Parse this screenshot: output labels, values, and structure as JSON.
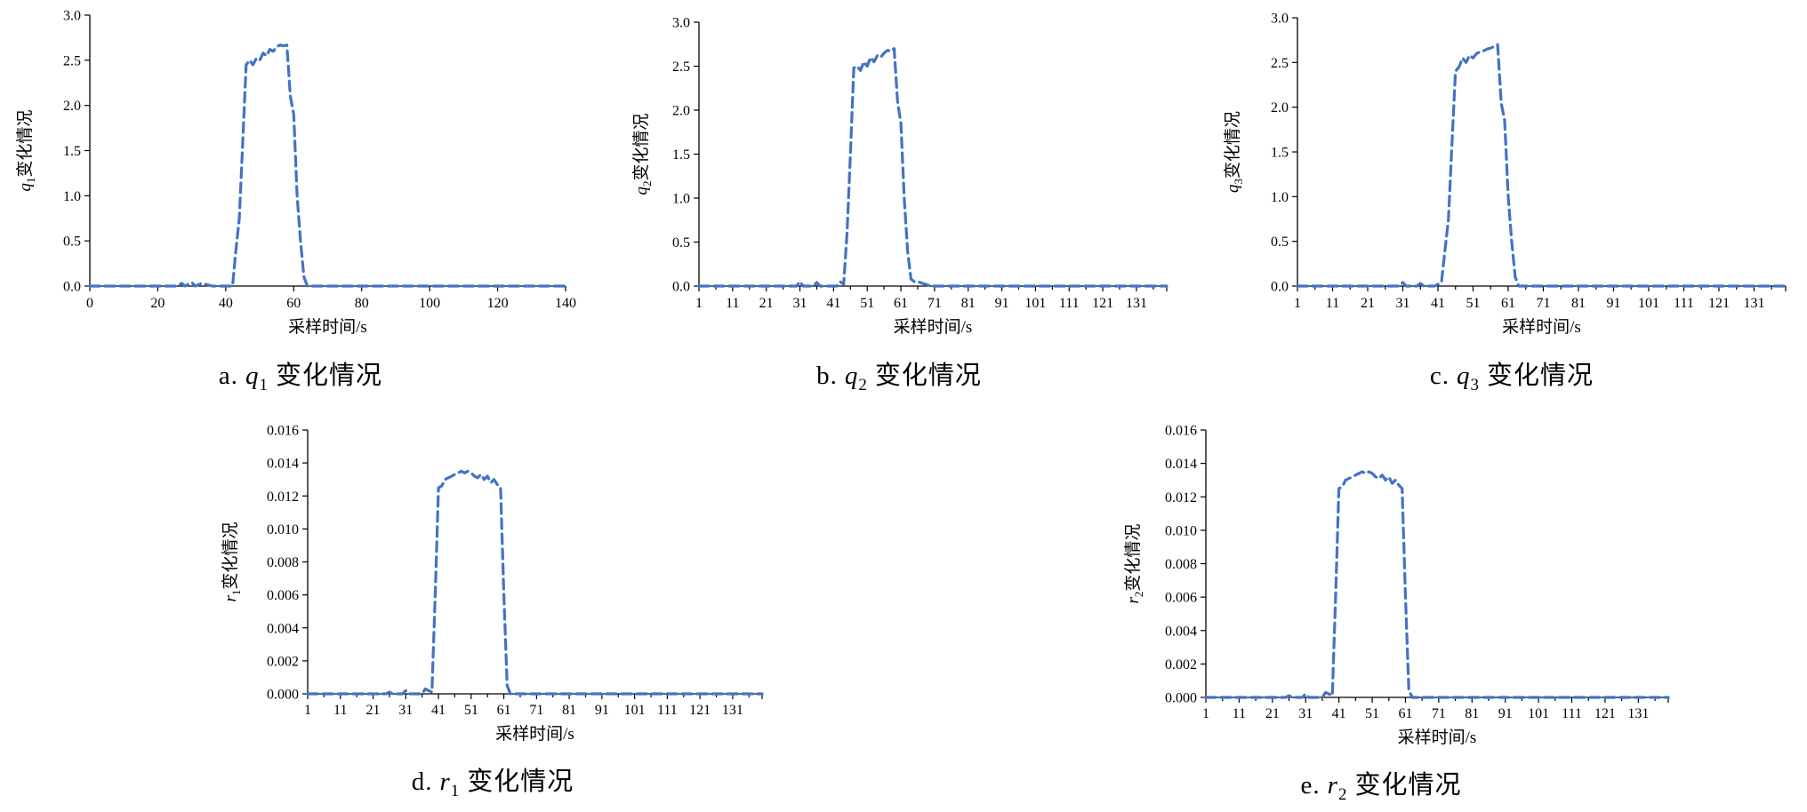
{
  "colors": {
    "series": "#4472C4",
    "axis": "#000000"
  },
  "chart_data": [
    {
      "type": "line",
      "caption": {
        "prefix": "a.",
        "var": "q",
        "sub": "1",
        "suffix": "变化情况"
      },
      "ylabel": {
        "var": "q",
        "sub": "1",
        "text": "变化情况"
      },
      "xlabel": "采样时间/s",
      "x_axis": {
        "kind": "numeric",
        "ticks": [
          0,
          20,
          40,
          60,
          80,
          100,
          120,
          140
        ],
        "range": [
          0,
          140
        ]
      },
      "y_axis": {
        "ticks": [
          "0.0",
          "0.5",
          "1.0",
          "1.5",
          "2.0",
          "2.5",
          "3.0"
        ],
        "range": [
          0,
          3.0
        ]
      },
      "grid": false,
      "series": [
        {
          "x": [
            0,
            10,
            20,
            26,
            27,
            28,
            30,
            31,
            33,
            36,
            40,
            42,
            43,
            44,
            45,
            46,
            47,
            48,
            49,
            50,
            51,
            52,
            53,
            54,
            55,
            56,
            57,
            58,
            59,
            60,
            61,
            62,
            63,
            64,
            70,
            80,
            100,
            120,
            140
          ],
          "y": [
            0,
            0,
            0,
            0,
            0.03,
            0,
            0.04,
            0,
            0.03,
            0,
            0,
            0,
            0.4,
            0.75,
            1.6,
            2.45,
            2.5,
            2.45,
            2.52,
            2.5,
            2.58,
            2.55,
            2.62,
            2.6,
            2.65,
            2.67,
            2.66,
            2.67,
            2.1,
            1.9,
            1.0,
            0.5,
            0.1,
            0,
            0,
            0,
            0,
            0,
            0
          ]
        }
      ]
    },
    {
      "type": "line",
      "caption": {
        "prefix": "b.",
        "var": "q",
        "sub": "2",
        "suffix": "变化情况"
      },
      "ylabel": {
        "var": "q",
        "sub": "2",
        "text": "变化情况"
      },
      "xlabel": "采样时间/s",
      "x_axis": {
        "kind": "index",
        "ticks": [
          1,
          11,
          21,
          31,
          41,
          51,
          61,
          71,
          81,
          91,
          101,
          111,
          121,
          131
        ],
        "range": [
          1,
          140
        ]
      },
      "y_axis": {
        "ticks": [
          "0.0",
          "0.5",
          "1.0",
          "1.5",
          "2.0",
          "2.5",
          "3.0"
        ],
        "range": [
          0,
          3.0
        ]
      },
      "grid": false,
      "series": [
        {
          "x": [
            1,
            10,
            20,
            30,
            31,
            32,
            35,
            36,
            37,
            40,
            42,
            43,
            44,
            45,
            46,
            47,
            48,
            49,
            50,
            51,
            52,
            53,
            54,
            55,
            56,
            57,
            58,
            59,
            60,
            61,
            62,
            63,
            64,
            65,
            66,
            70,
            80,
            100,
            120,
            140
          ],
          "y": [
            0,
            0,
            0,
            0,
            0.05,
            0,
            0,
            0.04,
            0,
            0,
            0,
            0.05,
            0.02,
            0.6,
            1.5,
            2.48,
            2.5,
            2.45,
            2.55,
            2.5,
            2.6,
            2.55,
            2.62,
            2.6,
            2.65,
            2.68,
            2.67,
            2.7,
            2.1,
            1.85,
            1.0,
            0.4,
            0.08,
            0.05,
            0.05,
            0,
            0,
            0,
            0,
            0
          ]
        }
      ]
    },
    {
      "type": "line",
      "caption": {
        "prefix": "c.",
        "var": "q",
        "sub": "3",
        "suffix": "变化情况"
      },
      "ylabel": {
        "var": "q",
        "sub": "3",
        "text": "变化情况"
      },
      "xlabel": "采样时间/s",
      "x_axis": {
        "kind": "index",
        "ticks": [
          1,
          11,
          21,
          31,
          41,
          51,
          61,
          71,
          81,
          91,
          101,
          111,
          121,
          131
        ],
        "range": [
          1,
          140
        ]
      },
      "y_axis": {
        "ticks": [
          "0.0",
          "0.5",
          "1.0",
          "1.5",
          "2.0",
          "2.5",
          "3.0"
        ],
        "range": [
          0,
          3.0
        ]
      },
      "grid": false,
      "series": [
        {
          "x": [
            1,
            10,
            20,
            30,
            31,
            32,
            35,
            36,
            37,
            40,
            42,
            43,
            44,
            45,
            46,
            47,
            48,
            49,
            50,
            51,
            52,
            53,
            54,
            55,
            56,
            57,
            58,
            59,
            60,
            61,
            62,
            63,
            64,
            70,
            80,
            100,
            120,
            140
          ],
          "y": [
            0,
            0,
            0,
            0,
            0.04,
            0,
            0,
            0.03,
            0,
            0,
            0.04,
            0.4,
            0.75,
            1.6,
            2.4,
            2.45,
            2.55,
            2.5,
            2.58,
            2.55,
            2.6,
            2.62,
            2.63,
            2.65,
            2.66,
            2.68,
            2.7,
            2.05,
            1.85,
            1.0,
            0.5,
            0.1,
            0,
            0,
            0,
            0,
            0,
            0
          ]
        }
      ]
    },
    {
      "type": "line",
      "caption": {
        "prefix": "d.",
        "var": "r",
        "sub": "1",
        "suffix": "变化情况"
      },
      "ylabel": {
        "var": "r",
        "sub": "1",
        "text": "变化情况"
      },
      "xlabel": "采样时间/s",
      "x_axis": {
        "kind": "index",
        "ticks": [
          1,
          11,
          21,
          31,
          41,
          51,
          61,
          71,
          81,
          91,
          101,
          111,
          121,
          131
        ],
        "range": [
          1,
          140
        ]
      },
      "y_axis": {
        "ticks": [
          "0.000",
          "0.002",
          "0.004",
          "0.006",
          "0.008",
          "0.010",
          "0.012",
          "0.014",
          "0.016"
        ],
        "range": [
          0,
          0.016
        ]
      },
      "grid": false,
      "series": [
        {
          "x": [
            1,
            10,
            20,
            25,
            26,
            27,
            30,
            31,
            32,
            36,
            37,
            38,
            39,
            40,
            41,
            42,
            43,
            44,
            45,
            46,
            47,
            48,
            49,
            50,
            51,
            52,
            53,
            54,
            55,
            56,
            57,
            58,
            59,
            60,
            61,
            62,
            63,
            70,
            80,
            100,
            120,
            140
          ],
          "y": [
            0,
            0,
            0,
            0,
            0.0001,
            0,
            0,
            0.0002,
            0,
            0,
            0.0003,
            0.0002,
            0.0001,
            0.006,
            0.0125,
            0.0126,
            0.013,
            0.0131,
            0.0132,
            0.0133,
            0.0134,
            0.0135,
            0.0134,
            0.0135,
            0.0134,
            0.0132,
            0.0131,
            0.0133,
            0.013,
            0.0132,
            0.0128,
            0.013,
            0.0127,
            0.0125,
            0.006,
            0.0005,
            0,
            0,
            0,
            0,
            0,
            0
          ]
        }
      ]
    },
    {
      "type": "line",
      "caption": {
        "prefix": "e.",
        "var": "r",
        "sub": "2",
        "suffix": "变化情况"
      },
      "ylabel": {
        "var": "r",
        "sub": "2",
        "text": "变化情况"
      },
      "xlabel": "采样时间/s",
      "x_axis": {
        "kind": "index",
        "ticks": [
          1,
          11,
          21,
          31,
          41,
          51,
          61,
          71,
          81,
          91,
          101,
          111,
          121,
          131
        ],
        "range": [
          1,
          140
        ]
      },
      "y_axis": {
        "ticks": [
          "0.000",
          "0.002",
          "0.004",
          "0.006",
          "0.008",
          "0.010",
          "0.012",
          "0.014",
          "0.016"
        ],
        "range": [
          0,
          0.016
        ]
      },
      "grid": false,
      "series": [
        {
          "x": [
            1,
            10,
            20,
            25,
            26,
            27,
            30,
            31,
            32,
            36,
            37,
            38,
            39,
            40,
            41,
            42,
            43,
            44,
            45,
            46,
            47,
            48,
            49,
            50,
            51,
            52,
            53,
            54,
            55,
            56,
            57,
            58,
            59,
            60,
            61,
            62,
            63,
            70,
            80,
            100,
            120,
            140
          ],
          "y": [
            0,
            0,
            0,
            0,
            0.0001,
            0,
            0,
            0.0002,
            0,
            0,
            0.0003,
            0.0002,
            0.0001,
            0.006,
            0.0125,
            0.0126,
            0.013,
            0.0131,
            0.0132,
            0.0133,
            0.0134,
            0.0135,
            0.0134,
            0.0135,
            0.0134,
            0.0132,
            0.0131,
            0.0133,
            0.013,
            0.0132,
            0.0128,
            0.013,
            0.0127,
            0.0125,
            0.006,
            0.0005,
            0,
            0,
            0,
            0,
            0,
            0
          ]
        }
      ]
    }
  ]
}
